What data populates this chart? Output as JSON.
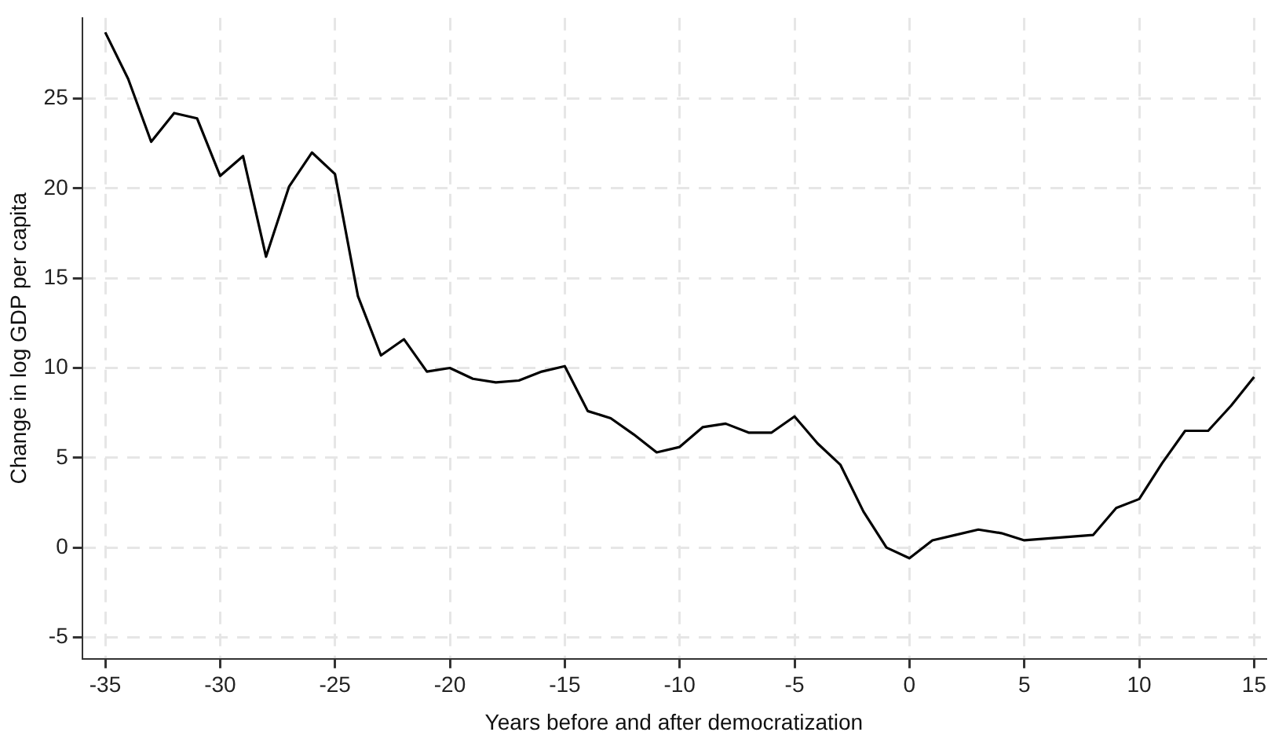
{
  "chart_data": {
    "type": "line",
    "xlabel": "Years before and after democratization",
    "ylabel": "Change in log GDP per capita",
    "x": [
      -35,
      -34,
      -33,
      -32,
      -31,
      -30,
      -29,
      -28,
      -27,
      -26,
      -25,
      -24,
      -23,
      -22,
      -21,
      -20,
      -19,
      -18,
      -17,
      -16,
      -15,
      -14,
      -13,
      -12,
      -11,
      -10,
      -9,
      -8,
      -7,
      -6,
      -5,
      -4,
      -3,
      -2,
      -1,
      0,
      1,
      2,
      3,
      4,
      5,
      6,
      7,
      8,
      9,
      10,
      11,
      12,
      13,
      14,
      15
    ],
    "series": [
      {
        "color": "#000000",
        "values": [
          28.7,
          26.1,
          22.6,
          24.2,
          23.9,
          20.7,
          21.8,
          16.2,
          20.1,
          22.0,
          20.8,
          14.0,
          10.7,
          11.6,
          9.8,
          10.0,
          9.4,
          9.2,
          9.3,
          9.8,
          10.1,
          7.6,
          7.2,
          6.3,
          5.3,
          5.6,
          6.7,
          6.9,
          6.4,
          6.4,
          7.3,
          5.8,
          4.6,
          2.0,
          0.0,
          -0.6,
          0.4,
          0.7,
          1.0,
          0.8,
          0.4,
          0.5,
          0.6,
          0.7,
          2.2,
          2.7,
          4.7,
          6.5,
          6.5,
          7.9,
          9.5
        ]
      }
    ],
    "xlim": [
      -36,
      15.5
    ],
    "ylim": [
      -6.2,
      29.5
    ],
    "xticks": [
      -35,
      -30,
      -25,
      -20,
      -15,
      -10,
      -5,
      0,
      5,
      10,
      15
    ],
    "yticks": [
      -5,
      0,
      5,
      10,
      15,
      20,
      25
    ],
    "grid": true,
    "legend": false,
    "marker": "none",
    "line_style": "solid"
  }
}
